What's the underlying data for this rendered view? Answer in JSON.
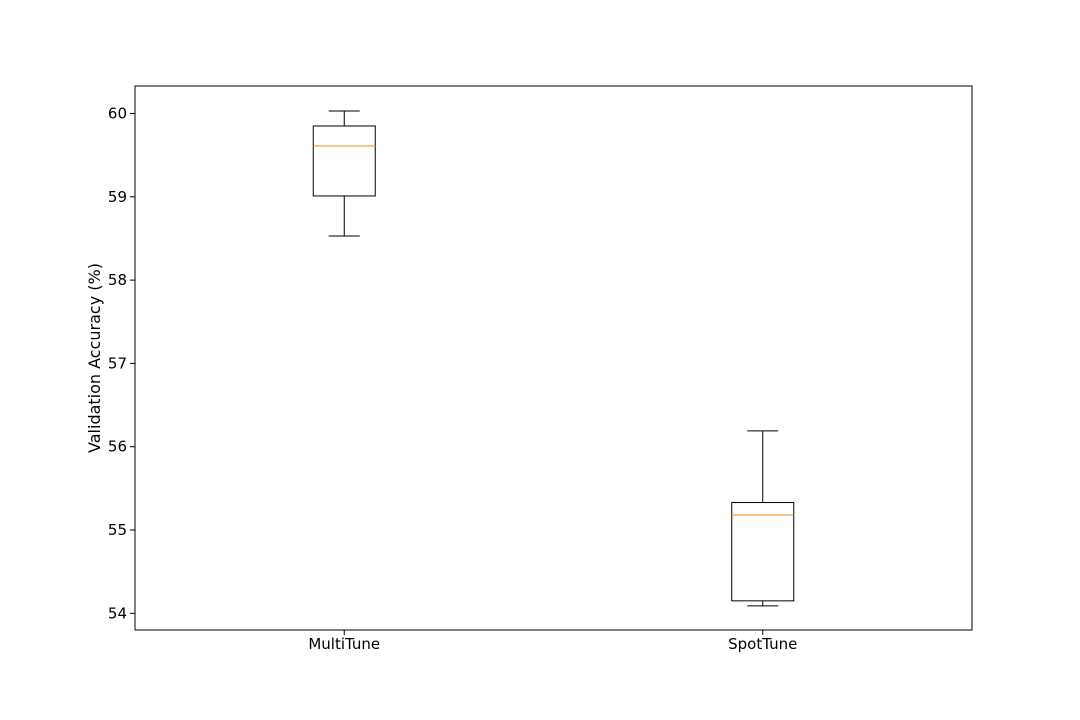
{
  "chart_data": {
    "type": "box",
    "title": "",
    "xlabel": "",
    "ylabel": "Validation Accuracy (%)",
    "ylim": [
      53.8,
      60.33
    ],
    "yticks": [
      54,
      55,
      56,
      57,
      58,
      59,
      60
    ],
    "grid": false,
    "categories": [
      "MultiTune",
      "SpotTune"
    ],
    "boxes": [
      {
        "label": "MultiTune",
        "whisker_low": 58.53,
        "q1": 59.01,
        "median": 59.61,
        "q3": 59.85,
        "whisker_high": 60.03
      },
      {
        "label": "SpotTune",
        "whisker_low": 54.09,
        "q1": 54.15,
        "median": 55.18,
        "q3": 55.33,
        "whisker_high": 56.19
      }
    ],
    "colors": {
      "box": "#000000",
      "median": "#ff7f0e",
      "frame": "#000000"
    }
  }
}
